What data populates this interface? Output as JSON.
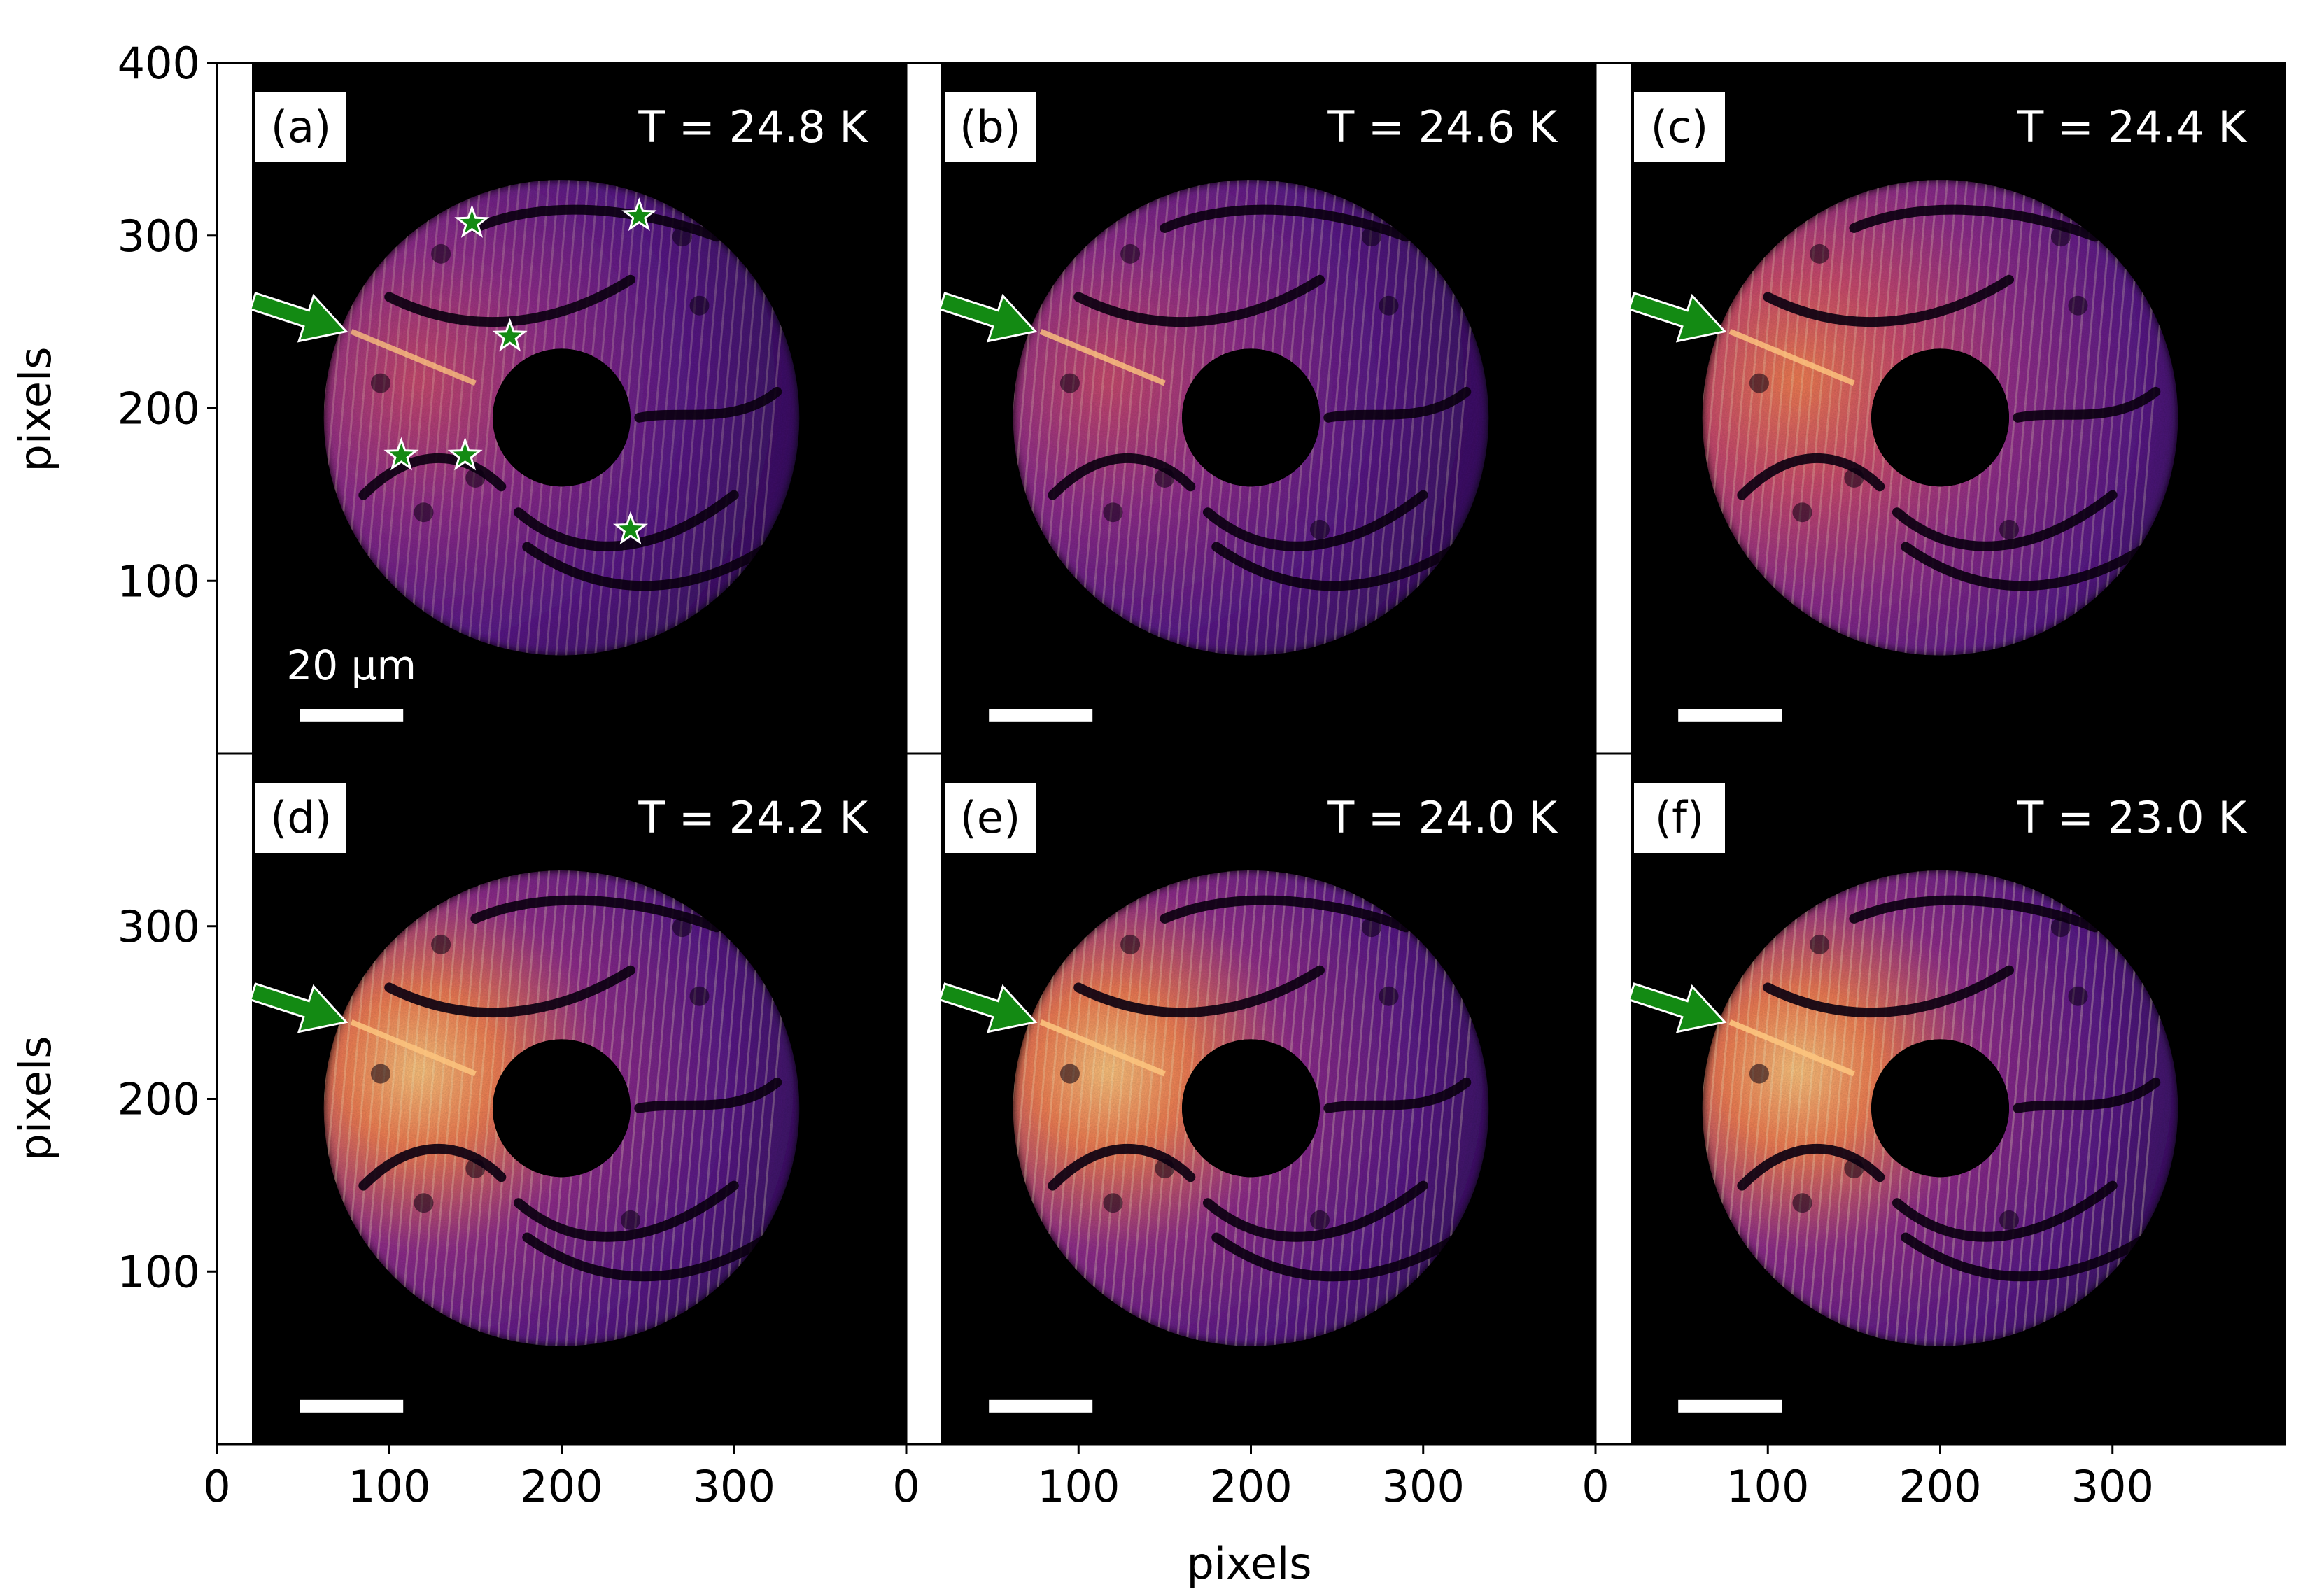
{
  "figure": {
    "x_axis_label": "pixels",
    "y_axis_label": "pixels",
    "x_ticks": [
      "0",
      "100",
      "200",
      "300"
    ],
    "y_ticks_top": [
      "400",
      "300",
      "200",
      "100"
    ],
    "y_ticks_bottom": [
      "300",
      "200",
      "100"
    ],
    "scale_bar_label": "20 μm",
    "marker_colors": {
      "arrow": "#138a13",
      "star": "#138a13",
      "star_edge": "#ffffff"
    },
    "colormap": [
      "#000004",
      "#2a0a52",
      "#5a1a88",
      "#8f2d8a",
      "#c84a6e",
      "#f07d52",
      "#fcc47e",
      "#fdf6c8"
    ]
  },
  "panels": [
    {
      "label": "(a)",
      "temperature": "T = 24.8 K",
      "intensity": 0.55
    },
    {
      "label": "(b)",
      "temperature": "T = 24.6 K",
      "intensity": 0.68
    },
    {
      "label": "(c)",
      "temperature": "T = 24.4 K",
      "intensity": 0.74
    },
    {
      "label": "(d)",
      "temperature": "T = 24.2 K",
      "intensity": 0.86
    },
    {
      "label": "(e)",
      "temperature": "T = 24.0 K",
      "intensity": 0.9
    },
    {
      "label": "(f)",
      "temperature": "T = 23.0 K",
      "intensity": 1.0
    }
  ]
}
